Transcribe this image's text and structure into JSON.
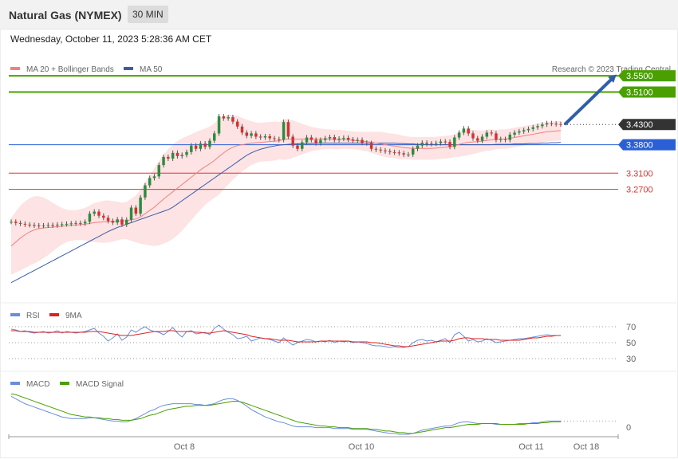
{
  "header": {
    "title": "Natural Gas (NYMEX)",
    "interval": "30 MIN"
  },
  "datetime": "Wednesday, October 11, 2023 5:28:36 AM CET",
  "copyright": "Research © 2023 Trading Central",
  "colors": {
    "resistance": "#4aa000",
    "pivot": "#2a5fd6",
    "support": "#e03030",
    "current": "#333333",
    "bollinger_fill": "#fde3e3",
    "ma20": "#f08080",
    "ma50": "#3a5ca8",
    "bull": "#2e8b3e",
    "bear": "#d63030",
    "rsi": "#6a8fd8",
    "rsi_ma": "#e02020",
    "macd": "#6a8fd8",
    "macd_signal": "#4aa000",
    "arrow": "#2f5fa8"
  },
  "chart_data": [
    {
      "type": "candlestick",
      "title": "Natural Gas (NYMEX) 30 MIN",
      "legend": [
        {
          "name": "MA 20 + Bollinger Bands",
          "color": "#f08080"
        },
        {
          "name": "MA 50",
          "color": "#3a5ca8"
        }
      ],
      "ylim": [
        3.0,
        3.57
      ],
      "x_ticks": [
        "Oct 8",
        "Oct 10",
        "Oct 11",
        "Oct 18"
      ],
      "levels": [
        {
          "value": 3.55,
          "label": "3.5500",
          "kind": "resistance"
        },
        {
          "value": 3.51,
          "label": "3.5100",
          "kind": "resistance"
        },
        {
          "value": 3.43,
          "label": "3.4300",
          "kind": "current"
        },
        {
          "value": 3.38,
          "label": "3.3800",
          "kind": "pivot"
        },
        {
          "value": 3.31,
          "label": "3.3100",
          "kind": "support"
        },
        {
          "value": 3.27,
          "label": "3.2700",
          "kind": "support"
        }
      ],
      "close": [
        3.19,
        3.187,
        3.185,
        3.183,
        3.182,
        3.181,
        3.18,
        3.181,
        3.182,
        3.181,
        3.183,
        3.184,
        3.185,
        3.186,
        3.187,
        3.186,
        3.19,
        3.21,
        3.215,
        3.205,
        3.2,
        3.192,
        3.188,
        3.196,
        3.183,
        3.195,
        3.225,
        3.21,
        3.25,
        3.28,
        3.298,
        3.302,
        3.33,
        3.35,
        3.346,
        3.36,
        3.352,
        3.355,
        3.362,
        3.378,
        3.37,
        3.383,
        3.375,
        3.39,
        3.408,
        3.45,
        3.445,
        3.448,
        3.437,
        3.425,
        3.41,
        3.402,
        3.408,
        3.4,
        3.398,
        3.401,
        3.396,
        3.394,
        3.392,
        3.436,
        3.4,
        3.378,
        3.37,
        3.386,
        3.398,
        3.392,
        3.384,
        3.392,
        3.396,
        3.399,
        3.392,
        3.395,
        3.397,
        3.393,
        3.39,
        3.392,
        3.385,
        3.384,
        3.37,
        3.368,
        3.366,
        3.364,
        3.362,
        3.361,
        3.359,
        3.356,
        3.356,
        3.37,
        3.378,
        3.385,
        3.382,
        3.383,
        3.384,
        3.388,
        3.387,
        3.375,
        3.398,
        3.41,
        3.42,
        3.408,
        3.396,
        3.39,
        3.4,
        3.41,
        3.408,
        3.392,
        3.394,
        3.392,
        3.405,
        3.41,
        3.413,
        3.416,
        3.419,
        3.423,
        3.426,
        3.43,
        3.433,
        3.432,
        3.431,
        3.43
      ],
      "ma20": [
        3.13,
        3.14,
        3.15,
        3.158,
        3.165,
        3.17,
        3.173,
        3.175,
        3.176,
        3.177,
        3.178,
        3.179,
        3.18,
        3.181,
        3.182,
        3.183,
        3.184,
        3.186,
        3.188,
        3.189,
        3.19,
        3.191,
        3.191,
        3.192,
        3.192,
        3.193,
        3.195,
        3.197,
        3.202,
        3.21,
        3.218,
        3.226,
        3.236,
        3.246,
        3.255,
        3.264,
        3.273,
        3.282,
        3.291,
        3.3,
        3.309,
        3.318,
        3.326,
        3.333,
        3.341,
        3.351,
        3.36,
        3.368,
        3.374,
        3.378,
        3.38,
        3.382,
        3.384,
        3.385,
        3.386,
        3.387,
        3.388,
        3.389,
        3.39,
        3.393,
        3.394,
        3.394,
        3.394,
        3.394,
        3.394,
        3.394,
        3.394,
        3.394,
        3.394,
        3.394,
        3.393,
        3.393,
        3.393,
        3.392,
        3.391,
        3.39,
        3.389,
        3.388,
        3.386,
        3.384,
        3.382,
        3.38,
        3.378,
        3.377,
        3.375,
        3.373,
        3.372,
        3.371,
        3.371,
        3.371,
        3.371,
        3.371,
        3.372,
        3.373,
        3.374,
        3.375,
        3.378,
        3.381,
        3.384,
        3.386,
        3.387,
        3.388,
        3.389,
        3.391,
        3.392,
        3.393,
        3.394,
        3.394,
        3.396,
        3.398,
        3.4,
        3.402,
        3.404,
        3.406,
        3.408,
        3.41,
        3.412,
        3.413,
        3.414,
        3.415
      ],
      "bb_width": [
        0.07,
        0.075,
        0.08,
        0.082,
        0.083,
        0.083,
        0.08,
        0.075,
        0.068,
        0.06,
        0.052,
        0.045,
        0.04,
        0.038,
        0.037,
        0.038,
        0.04,
        0.044,
        0.048,
        0.05,
        0.052,
        0.052,
        0.05,
        0.048,
        0.045,
        0.046,
        0.052,
        0.058,
        0.066,
        0.076,
        0.086,
        0.096,
        0.104,
        0.11,
        0.114,
        0.116,
        0.116,
        0.114,
        0.11,
        0.106,
        0.102,
        0.098,
        0.094,
        0.092,
        0.092,
        0.094,
        0.09,
        0.086,
        0.08,
        0.074,
        0.066,
        0.06,
        0.054,
        0.05,
        0.048,
        0.048,
        0.048,
        0.048,
        0.046,
        0.05,
        0.05,
        0.046,
        0.042,
        0.038,
        0.034,
        0.03,
        0.028,
        0.026,
        0.025,
        0.024,
        0.024,
        0.024,
        0.023,
        0.022,
        0.022,
        0.022,
        0.023,
        0.024,
        0.026,
        0.028,
        0.03,
        0.03,
        0.03,
        0.03,
        0.03,
        0.029,
        0.028,
        0.028,
        0.028,
        0.028,
        0.028,
        0.028,
        0.028,
        0.028,
        0.028,
        0.028,
        0.028,
        0.03,
        0.032,
        0.032,
        0.03,
        0.028,
        0.026,
        0.026,
        0.026,
        0.024,
        0.024,
        0.024,
        0.024,
        0.024,
        0.024,
        0.024,
        0.024,
        0.024,
        0.024,
        0.024,
        0.024,
        0.024,
        0.024,
        0.024
      ],
      "ma50": [
        3.04,
        3.046,
        3.052,
        3.058,
        3.064,
        3.07,
        3.076,
        3.082,
        3.088,
        3.094,
        3.1,
        3.106,
        3.112,
        3.118,
        3.124,
        3.13,
        3.136,
        3.142,
        3.148,
        3.154,
        3.16,
        3.166,
        3.171,
        3.176,
        3.18,
        3.184,
        3.188,
        3.192,
        3.196,
        3.2,
        3.204,
        3.208,
        3.212,
        3.216,
        3.22,
        3.226,
        3.234,
        3.242,
        3.25,
        3.258,
        3.266,
        3.274,
        3.282,
        3.29,
        3.298,
        3.306,
        3.314,
        3.322,
        3.33,
        3.338,
        3.346,
        3.354,
        3.36,
        3.365,
        3.369,
        3.372,
        3.375,
        3.377,
        3.379,
        3.38,
        3.381,
        3.382,
        3.382,
        3.383,
        3.383,
        3.383,
        3.384,
        3.384,
        3.384,
        3.384,
        3.384,
        3.384,
        3.384,
        3.384,
        3.384,
        3.384,
        3.384,
        3.384,
        3.384,
        3.384,
        3.384,
        3.384,
        3.384,
        3.384,
        3.383,
        3.383,
        3.382,
        3.382,
        3.381,
        3.381,
        3.38,
        3.38,
        3.38,
        3.38,
        3.38,
        3.38,
        3.38,
        3.38,
        3.38,
        3.38,
        3.38,
        3.38,
        3.38,
        3.38,
        3.38,
        3.381,
        3.381,
        3.381,
        3.381,
        3.382,
        3.382,
        3.382,
        3.383,
        3.383,
        3.383,
        3.384,
        3.384,
        3.385,
        3.385,
        3.386
      ]
    },
    {
      "type": "line",
      "title": "RSI",
      "legend": [
        {
          "name": "RSI",
          "color": "#6a8fd8"
        },
        {
          "name": "9MA",
          "color": "#e02020"
        }
      ],
      "ylim": [
        20,
        80
      ],
      "y_ticks": [
        70,
        50,
        30
      ],
      "series": [
        {
          "name": "RSI",
          "values": [
            67,
            66,
            64,
            65,
            63,
            62,
            63,
            64,
            62,
            63,
            65,
            62,
            64,
            63,
            62,
            63,
            64,
            66,
            68,
            62,
            58,
            52,
            56,
            61,
            53,
            57,
            66,
            63,
            67,
            70,
            66,
            64,
            63,
            60,
            64,
            69,
            62,
            57,
            64,
            65,
            61,
            62,
            63,
            60,
            68,
            72,
            67,
            63,
            60,
            55,
            56,
            58,
            52,
            54,
            56,
            55,
            54,
            52,
            50,
            56,
            51,
            47,
            50,
            52,
            54,
            53,
            51,
            52,
            51,
            53,
            50,
            52,
            51,
            52,
            50,
            51,
            50,
            49,
            47,
            46,
            46,
            45,
            44,
            45,
            44,
            44,
            45,
            50,
            53,
            54,
            52,
            53,
            51,
            53,
            55,
            50,
            60,
            63,
            58,
            52,
            54,
            51,
            52,
            55,
            53,
            50,
            51,
            52,
            53,
            54,
            55,
            55,
            56,
            57,
            58,
            59,
            60,
            59,
            59,
            59
          ]
        },
        {
          "name": "9MA",
          "values": [
            65,
            65,
            64,
            64,
            64,
            63,
            63,
            63,
            63,
            63,
            63,
            63,
            63,
            63,
            63,
            63,
            63,
            64,
            64,
            64,
            63,
            62,
            61,
            60,
            59,
            59,
            59,
            60,
            61,
            62,
            63,
            64,
            64,
            64,
            65,
            65,
            64,
            64,
            64,
            64,
            63,
            63,
            62,
            62,
            63,
            64,
            65,
            64,
            63,
            62,
            61,
            60,
            58,
            57,
            56,
            55,
            55,
            54,
            53,
            53,
            53,
            52,
            51,
            51,
            51,
            51,
            51,
            52,
            52,
            52,
            52,
            52,
            52,
            52,
            51,
            51,
            51,
            51,
            50,
            50,
            49,
            48,
            47,
            46,
            46,
            45,
            45,
            46,
            47,
            48,
            49,
            50,
            51,
            52,
            52,
            52,
            53,
            55,
            56,
            56,
            55,
            55,
            55,
            54,
            54,
            54,
            53,
            53,
            53,
            53,
            53,
            54,
            55,
            56,
            56,
            57,
            58,
            58,
            59,
            59
          ]
        }
      ]
    },
    {
      "type": "line",
      "title": "MACD",
      "legend": [
        {
          "name": "MACD",
          "color": "#6a8fd8"
        },
        {
          "name": "MACD Signal",
          "color": "#4aa000"
        }
      ],
      "ylim": [
        -0.004,
        0.052
      ],
      "y_ticks": [
        0
      ],
      "series": [
        {
          "name": "MACD",
          "values": [
            0.043,
            0.04,
            0.037,
            0.034,
            0.032,
            0.03,
            0.028,
            0.026,
            0.024,
            0.022,
            0.02,
            0.018,
            0.017,
            0.016,
            0.016,
            0.016,
            0.016,
            0.017,
            0.017,
            0.016,
            0.015,
            0.014,
            0.013,
            0.013,
            0.012,
            0.012,
            0.014,
            0.016,
            0.019,
            0.022,
            0.025,
            0.027,
            0.03,
            0.032,
            0.033,
            0.034,
            0.034,
            0.034,
            0.034,
            0.034,
            0.033,
            0.033,
            0.032,
            0.033,
            0.034,
            0.037,
            0.039,
            0.04,
            0.04,
            0.038,
            0.035,
            0.031,
            0.027,
            0.024,
            0.021,
            0.018,
            0.016,
            0.014,
            0.012,
            0.011,
            0.009,
            0.007,
            0.006,
            0.006,
            0.006,
            0.006,
            0.005,
            0.005,
            0.005,
            0.005,
            0.004,
            0.004,
            0.004,
            0.004,
            0.003,
            0.003,
            0.003,
            0.003,
            0.002,
            0.001,
            0.0,
            -0.001,
            -0.002,
            -0.002,
            -0.003,
            -0.003,
            -0.003,
            -0.002,
            0.0,
            0.002,
            0.003,
            0.004,
            0.005,
            0.006,
            0.007,
            0.007,
            0.009,
            0.011,
            0.012,
            0.012,
            0.011,
            0.01,
            0.01,
            0.01,
            0.01,
            0.009,
            0.009,
            0.009,
            0.009,
            0.009,
            0.01,
            0.01,
            0.01,
            0.011,
            0.011,
            0.012,
            0.013,
            0.013,
            0.013,
            0.013
          ]
        },
        {
          "name": "MACD Signal",
          "values": [
            0.046,
            0.045,
            0.043,
            0.041,
            0.039,
            0.037,
            0.035,
            0.033,
            0.031,
            0.029,
            0.027,
            0.025,
            0.023,
            0.021,
            0.02,
            0.019,
            0.018,
            0.018,
            0.017,
            0.017,
            0.016,
            0.016,
            0.015,
            0.015,
            0.014,
            0.014,
            0.014,
            0.015,
            0.016,
            0.018,
            0.02,
            0.021,
            0.023,
            0.025,
            0.027,
            0.028,
            0.029,
            0.03,
            0.031,
            0.031,
            0.032,
            0.032,
            0.032,
            0.032,
            0.033,
            0.034,
            0.035,
            0.036,
            0.037,
            0.037,
            0.036,
            0.034,
            0.032,
            0.03,
            0.028,
            0.026,
            0.024,
            0.022,
            0.02,
            0.018,
            0.016,
            0.014,
            0.012,
            0.011,
            0.01,
            0.009,
            0.008,
            0.007,
            0.007,
            0.006,
            0.006,
            0.005,
            0.005,
            0.005,
            0.004,
            0.004,
            0.004,
            0.004,
            0.003,
            0.003,
            0.002,
            0.001,
            0.001,
            0.0,
            -0.001,
            -0.001,
            -0.002,
            -0.002,
            -0.001,
            0.0,
            0.001,
            0.002,
            0.003,
            0.004,
            0.005,
            0.005,
            0.006,
            0.007,
            0.008,
            0.009,
            0.009,
            0.009,
            0.01,
            0.01,
            0.01,
            0.01,
            0.009,
            0.009,
            0.009,
            0.009,
            0.009,
            0.009,
            0.01,
            0.01,
            0.01,
            0.011,
            0.011,
            0.012,
            0.012,
            0.012
          ]
        }
      ]
    }
  ]
}
